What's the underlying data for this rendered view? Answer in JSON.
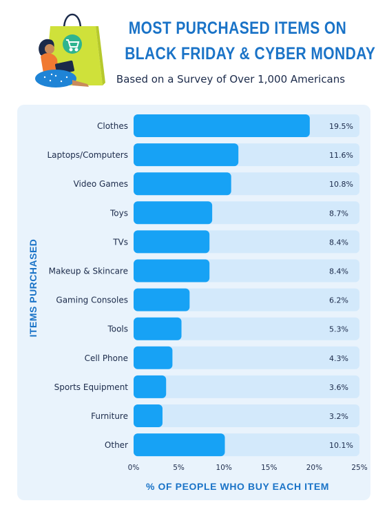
{
  "header": {
    "title_line1": "MOST PURCHASED ITEMS ON",
    "title_line2": "BLACK FRIDAY & CYBER MONDAY",
    "subtitle": "Based on a Survey of Over 1,000 Americans"
  },
  "colors": {
    "accent": "#1a73c7",
    "bar": "#17a2f5",
    "track": "#d3e9fb",
    "panel": "#e9f3fc",
    "text": "#1b2a4a"
  },
  "illustration": {
    "name": "woman-with-laptop-and-shopping-bag",
    "icon": "shopping-cart-icon"
  },
  "chart_data": {
    "type": "bar",
    "orientation": "horizontal",
    "categories": [
      "Clothes",
      "Laptops/Computers",
      "Video Games",
      "Toys",
      "TVs",
      "Makeup & Skincare",
      "Gaming Consoles",
      "Tools",
      "Cell Phone",
      "Sports Equipment",
      "Furniture",
      "Other"
    ],
    "values": [
      19.5,
      11.6,
      10.8,
      8.7,
      8.4,
      8.4,
      6.2,
      5.3,
      4.3,
      3.6,
      3.2,
      10.1
    ],
    "value_labels": [
      "19.5%",
      "11.6%",
      "10.8%",
      "8.7%",
      "8.4%",
      "8.4%",
      "6.2%",
      "5.3%",
      "4.3%",
      "3.6%",
      "3.2%",
      "10.1%"
    ],
    "xlim": [
      0,
      25
    ],
    "x_ticks": [
      0,
      5,
      10,
      15,
      20,
      25
    ],
    "x_tick_labels": [
      "0%",
      "5%",
      "10%",
      "15%",
      "20%",
      "25%"
    ],
    "xlabel": "% OF PEOPLE WHO BUY EACH ITEM",
    "ylabel": "ITEMS PURCHASED",
    "grid": false,
    "legend": "none"
  }
}
